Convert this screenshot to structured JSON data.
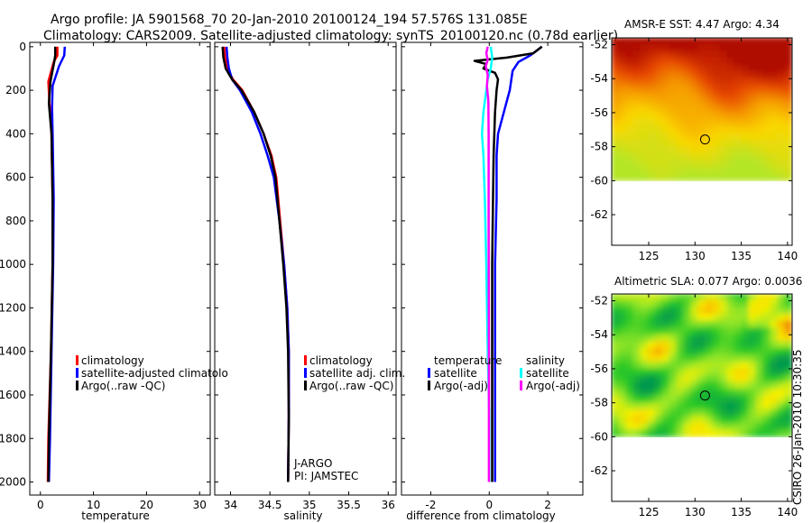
{
  "header": {
    "line1": "Argo profile: JA 5901568_70 20-Jan-2010 20100124_194 57.576S 131.085E",
    "line2": "Climatology: CARS2009. Satellite-adjusted climatology: synTS_20100120.nc (0.78d earlier)"
  },
  "stamp": "CSIRO 26-Jan-2010 10:30:35",
  "colors": {
    "red": "#ff0000",
    "blue": "#0000ff",
    "black": "#000000",
    "cyan": "#00ffff",
    "magenta": "#ff00ff"
  },
  "chart_data": [
    {
      "type": "line",
      "id": "temperature",
      "xlabel": "temperature",
      "ylabel": "",
      "xlim": [
        -2,
        32
      ],
      "ylim": [
        2060,
        -20
      ],
      "xticks": [
        0,
        10,
        20,
        30
      ],
      "xtick_labels": [
        "0",
        "10",
        "20",
        "30"
      ],
      "yticks": [
        0,
        200,
        400,
        600,
        800,
        1000,
        1200,
        1400,
        1600,
        1800,
        2000
      ],
      "ytick_labels": [
        "0",
        "200",
        "400",
        "600",
        "800",
        "1000",
        "1200",
        "1400",
        "1600",
        "1800",
        "2000"
      ],
      "legend": [
        "climatology",
        "satellite-adjusted climatolo",
        "Argo(..raw -QC)"
      ],
      "series": [
        {
          "name": "climatology",
          "color": "red",
          "x": [
            3.2,
            3.2,
            2.5,
            1.5,
            1.7,
            2.1,
            2.3,
            2.3,
            2.0,
            1.5,
            1.4
          ],
          "y": [
            0,
            40,
            70,
            160,
            260,
            400,
            700,
            1000,
            1400,
            1800,
            2000
          ]
        },
        {
          "name": "satellite-adjusted climatology",
          "color": "blue",
          "x": [
            4.6,
            4.5,
            3.5,
            2.3,
            2.2,
            2.3,
            2.5,
            2.4,
            2.1,
            1.8,
            1.6
          ],
          "y": [
            0,
            40,
            90,
            180,
            280,
            400,
            700,
            1000,
            1400,
            1800,
            2000
          ]
        },
        {
          "name": "Argo(..raw -QC)",
          "color": "black",
          "x": [
            2.8,
            2.8,
            2.6,
            1.9,
            1.6,
            2.1,
            2.3,
            2.3,
            2.0,
            1.6,
            1.5
          ],
          "y": [
            0,
            40,
            70,
            160,
            260,
            400,
            700,
            1000,
            1400,
            1800,
            2000
          ]
        }
      ]
    },
    {
      "type": "line",
      "id": "salinity",
      "xlabel": "salinity",
      "xlim": [
        33.8,
        36.1
      ],
      "ylim": [
        2060,
        -20
      ],
      "xticks": [
        34,
        34.5,
        35,
        35.5,
        36
      ],
      "xtick_labels": [
        "34",
        "34.5",
        "35",
        "35.5",
        "36"
      ],
      "legend": [
        "climatology",
        "satellite adj. clim.",
        "Argo(..raw -QC)"
      ],
      "annotation": {
        "line1": "J-ARGO",
        "line2": "PI: JAMSTEC"
      },
      "series": [
        {
          "name": "climatology",
          "color": "red",
          "x": [
            33.92,
            33.93,
            33.96,
            34.03,
            34.15,
            34.3,
            34.42,
            34.52,
            34.58,
            34.63,
            34.68,
            34.72,
            34.74,
            34.74,
            34.73
          ],
          "y": [
            0,
            50,
            100,
            150,
            200,
            300,
            400,
            500,
            600,
            800,
            1000,
            1200,
            1400,
            1700,
            2000
          ]
        },
        {
          "name": "satellite adj. clim.",
          "color": "blue",
          "x": [
            33.95,
            33.96,
            33.98,
            34.02,
            34.12,
            34.27,
            34.38,
            34.47,
            34.55,
            34.62,
            34.68,
            34.72,
            34.74,
            34.74,
            34.73
          ],
          "y": [
            0,
            50,
            100,
            150,
            200,
            300,
            400,
            500,
            600,
            800,
            1000,
            1200,
            1400,
            1700,
            2000
          ]
        },
        {
          "name": "Argo(..raw -QC)",
          "color": "black",
          "x": [
            33.9,
            33.91,
            33.94,
            34.02,
            34.14,
            34.3,
            34.42,
            34.51,
            34.57,
            34.62,
            34.67,
            34.71,
            34.73,
            34.74,
            34.73
          ],
          "y": [
            0,
            50,
            100,
            150,
            200,
            300,
            400,
            500,
            600,
            800,
            1000,
            1200,
            1400,
            1700,
            2000
          ]
        }
      ]
    },
    {
      "type": "line",
      "id": "difference",
      "xlabel": "difference from climatology",
      "xlim": [
        -3,
        3.2
      ],
      "ylim": [
        2060,
        -20
      ],
      "xticks": [
        -2,
        0,
        2
      ],
      "xtick_labels": [
        "-2",
        "0",
        "2"
      ],
      "legend": {
        "temperature_title": "temperature",
        "salinity_title": "salinity",
        "items": [
          "satellite",
          "Argo(-adj)",
          "satellite",
          "Argo(-adj)"
        ]
      },
      "series": [
        {
          "name": "temperature satellite",
          "color": "blue",
          "x": [
            1.8,
            1.6,
            1.4,
            1.0,
            0.8,
            0.7,
            0.5,
            0.3,
            0.25,
            0.25,
            0.2,
            0.2,
            0.2
          ],
          "y": [
            0,
            20,
            40,
            70,
            110,
            200,
            300,
            400,
            500,
            700,
            1000,
            1500,
            2000
          ]
        },
        {
          "name": "temperature Argo(-adj)",
          "color": "black",
          "x": [
            1.8,
            1.5,
            0.6,
            -0.5,
            -0.1,
            -0.2,
            0.2,
            0.3,
            0.25,
            0.2,
            0.15,
            0.1,
            0.1,
            0.1
          ],
          "y": [
            0,
            30,
            50,
            65,
            80,
            100,
            120,
            150,
            200,
            300,
            500,
            1000,
            1500,
            2000
          ]
        },
        {
          "name": "salinity satellite",
          "color": "cyan",
          "x": [
            0.05,
            0.1,
            0.05,
            -0.05,
            -0.1,
            -0.2,
            -0.25,
            -0.2,
            -0.15,
            -0.1,
            -0.05,
            0.0,
            0.0
          ],
          "y": [
            0,
            50,
            100,
            150,
            200,
            300,
            400,
            500,
            700,
            1000,
            1400,
            1700,
            2000
          ]
        },
        {
          "name": "salinity Argo(-adj)",
          "color": "magenta",
          "x": [
            -0.05,
            -0.1,
            -0.05,
            -0.12,
            -0.05,
            -0.08,
            -0.03,
            -0.02,
            -0.02,
            -0.01,
            -0.01
          ],
          "y": [
            0,
            30,
            60,
            90,
            130,
            180,
            250,
            400,
            800,
            1400,
            2000
          ]
        }
      ]
    },
    {
      "type": "heatmap",
      "id": "sst_map",
      "title": "AMSR-E SST: 4.47 Argo: 4.34",
      "xlim": [
        121,
        140.5
      ],
      "ylim": [
        -63.8,
        -51.6
      ],
      "xticks": [
        125,
        130,
        135,
        140
      ],
      "yticks": [
        -52,
        -54,
        -56,
        -58,
        -60,
        -62
      ],
      "data_extent": {
        "lon": [
          121,
          140.5
        ],
        "lat": [
          -60,
          -51.6
        ]
      },
      "marker": {
        "lon": 131.085,
        "lat": -57.576
      }
    },
    {
      "type": "heatmap",
      "id": "sla_map",
      "title": "Altimetric SLA: 0.077 Argo: 0.0036",
      "xlim": [
        121,
        140.5
      ],
      "ylim": [
        -63.8,
        -51.6
      ],
      "xticks": [
        125,
        130,
        135,
        140
      ],
      "yticks": [
        -52,
        -54,
        -56,
        -58,
        -60,
        -62
      ],
      "data_extent": {
        "lon": [
          121,
          140.5
        ],
        "lat": [
          -60,
          -51.6
        ]
      },
      "marker": {
        "lon": 131.085,
        "lat": -57.576
      }
    }
  ]
}
